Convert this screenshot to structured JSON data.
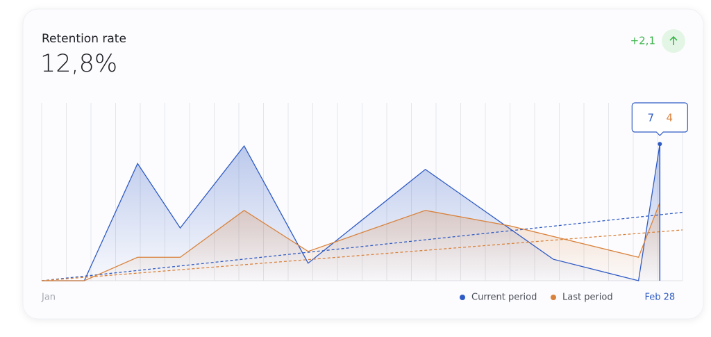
{
  "chart_data": {
    "type": "line",
    "title": "Retention rate",
    "subtitle": "12,8%",
    "change": "+2,1",
    "xlim": [
      1,
      61
    ],
    "xticks": [
      {
        "value": 1,
        "label": "Jan"
      },
      {
        "value": 59,
        "label": "Feb 28"
      }
    ],
    "ylim": [
      0,
      9
    ],
    "series": [
      {
        "name": "Current period",
        "color": "#2f5bc4",
        "x": [
          1,
          5,
          10,
          14,
          20,
          26,
          37,
          49,
          57,
          59
        ],
        "values": [
          0,
          0,
          6,
          2.7,
          6.9,
          0.9,
          5.7,
          1.1,
          0,
          7
        ],
        "trend": [
          0,
          3.5
        ]
      },
      {
        "name": "Last period",
        "color": "#d9823b",
        "x": [
          1,
          5,
          10,
          14,
          20,
          26,
          37,
          45,
          57,
          59
        ],
        "values": [
          0,
          0,
          1.2,
          1.2,
          3.6,
          1.5,
          3.6,
          2.8,
          1.2,
          4
        ],
        "trend": [
          0,
          2.6
        ]
      }
    ]
  }
}
